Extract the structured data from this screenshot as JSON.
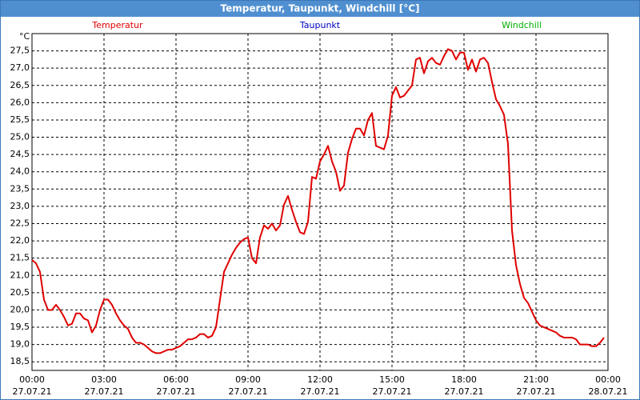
{
  "window_title": "Temperatur, Taupunkt, Windchill [°C]",
  "chart_data": {
    "type": "line",
    "y_unit": "°C",
    "x": [
      0,
      10,
      20,
      30,
      40,
      50,
      60,
      70,
      80,
      90,
      100,
      110,
      120,
      130,
      140,
      150,
      160,
      170,
      180,
      190,
      200,
      210,
      220,
      230,
      240,
      250,
      260,
      270,
      280,
      290,
      300,
      310,
      320,
      330,
      340,
      350,
      360,
      370,
      380,
      390,
      400,
      410,
      420,
      430,
      440,
      450,
      460,
      470,
      480,
      490,
      500,
      510,
      520,
      530,
      540,
      550,
      560,
      570,
      580,
      590,
      600,
      610,
      620,
      630,
      640,
      650,
      660,
      670,
      680,
      690,
      700,
      710,
      720,
      730,
      740,
      750,
      760,
      770,
      780,
      790,
      800,
      810,
      820,
      830,
      840,
      850,
      860,
      870,
      880,
      890,
      900,
      910,
      920,
      930,
      940,
      950,
      960,
      970,
      980,
      990,
      1000,
      1010,
      1020,
      1030,
      1040,
      1050,
      1060,
      1070,
      1080,
      1090,
      1100,
      1110,
      1120,
      1130,
      1140,
      1150,
      1160,
      1170,
      1180,
      1190,
      1200,
      1210,
      1220,
      1230,
      1240,
      1250,
      1260,
      1270,
      1280,
      1290,
      1300,
      1310,
      1320,
      1330,
      1340,
      1350,
      1360,
      1370,
      1380,
      1390,
      1400,
      1410,
      1420,
      1430
    ],
    "series": [
      {
        "name": "Temperatur",
        "color": "#e00000",
        "values": [
          21.45,
          21.35,
          21.1,
          20.3,
          20.0,
          20.0,
          20.15,
          20.0,
          19.8,
          19.55,
          19.6,
          19.9,
          19.9,
          19.75,
          19.7,
          19.35,
          19.55,
          20.0,
          20.3,
          20.3,
          20.15,
          19.9,
          19.7,
          19.55,
          19.45,
          19.2,
          19.05,
          19.05,
          19.0,
          18.9,
          18.8,
          18.75,
          18.75,
          18.8,
          18.85,
          18.85,
          18.9,
          18.95,
          19.05,
          19.15,
          19.15,
          19.2,
          19.3,
          19.3,
          19.2,
          19.25,
          19.5,
          20.3,
          21.1,
          21.35,
          21.6,
          21.8,
          21.95,
          22.05,
          22.1,
          21.5,
          21.35,
          22.1,
          22.45,
          22.35,
          22.5,
          22.3,
          22.45,
          23.05,
          23.3,
          22.9,
          22.55,
          22.25,
          22.2,
          22.55,
          23.85,
          23.8,
          24.3,
          24.5,
          24.75,
          24.3,
          24.0,
          23.45,
          23.6,
          24.55,
          24.95,
          25.25,
          25.25,
          25.05,
          25.5,
          25.7,
          24.75,
          24.7,
          24.65,
          25.05,
          26.2,
          26.45,
          26.15,
          26.2,
          26.35,
          26.5,
          27.25,
          27.3,
          26.85,
          27.2,
          27.3,
          27.15,
          27.1,
          27.35,
          27.55,
          27.5,
          27.25,
          27.45,
          27.45,
          26.95,
          27.25,
          26.9,
          27.25,
          27.3,
          27.15,
          26.6,
          26.1,
          25.9,
          25.65,
          24.8,
          22.3,
          21.3,
          20.75,
          20.35,
          20.2,
          19.95,
          19.7,
          19.55,
          19.5,
          19.45,
          19.4,
          19.35,
          19.25,
          19.2,
          19.2,
          19.2,
          19.15,
          19.0,
          19.0,
          19.0,
          18.95,
          18.95,
          19.05,
          19.2
        ]
      },
      {
        "name": "Taupunkt",
        "color": "#0000c0",
        "values": [
          null,
          null,
          null,
          null,
          null,
          null,
          null,
          null,
          null,
          null,
          null,
          null,
          null,
          null,
          null,
          null,
          null,
          null,
          null,
          null,
          null,
          null,
          null,
          null,
          null,
          null,
          null,
          null,
          null,
          null,
          null,
          null,
          null,
          null,
          null,
          null,
          null,
          null,
          null,
          null,
          null,
          null,
          null,
          null,
          null,
          null,
          null,
          null,
          null,
          null,
          null,
          null,
          null,
          null,
          null,
          null,
          null,
          null,
          null,
          null,
          null,
          null,
          null,
          null,
          null,
          null,
          null,
          null,
          null,
          null,
          null,
          null,
          null,
          null,
          null,
          null,
          null,
          null,
          null,
          null,
          null,
          null,
          null,
          null,
          null,
          null,
          null,
          null,
          null,
          null,
          null,
          null,
          null,
          null,
          null,
          null,
          null,
          null,
          null,
          null,
          null,
          null,
          null,
          null,
          null,
          null,
          null,
          null,
          null,
          null,
          null,
          null,
          null,
          null,
          null,
          null,
          null,
          null,
          null,
          null,
          null,
          null,
          null,
          null,
          null,
          null,
          null,
          null,
          null,
          null,
          null,
          null,
          null,
          null,
          null,
          null,
          null,
          null,
          null,
          null,
          null,
          null,
          null,
          null
        ]
      },
      {
        "name": "Windchill",
        "color": "#00b000",
        "values": [
          null,
          null,
          null,
          null,
          null,
          null,
          null,
          null,
          null,
          null,
          null,
          null,
          null,
          null,
          null,
          null,
          null,
          null,
          null,
          null,
          null,
          null,
          null,
          null,
          null,
          null,
          null,
          null,
          null,
          null,
          null,
          null,
          null,
          null,
          null,
          null,
          null,
          null,
          null,
          null,
          null,
          null,
          null,
          null,
          null,
          null,
          null,
          null,
          null,
          null,
          null,
          null,
          null,
          null,
          null,
          null,
          null,
          null,
          null,
          null,
          null,
          null,
          null,
          null,
          null,
          null,
          null,
          null,
          null,
          null,
          null,
          null,
          null,
          null,
          null,
          null,
          null,
          null,
          null,
          null,
          null,
          null,
          null,
          null,
          null,
          null,
          null,
          null,
          null,
          null,
          null,
          null,
          null,
          null,
          null,
          null,
          null,
          null,
          null,
          null,
          null,
          null,
          null,
          null,
          null,
          null,
          null,
          null,
          null,
          null,
          null,
          null,
          null,
          null,
          null,
          null,
          null,
          null,
          null,
          null,
          null,
          null,
          null,
          null,
          null,
          null,
          null,
          null,
          null,
          null,
          null,
          null,
          null,
          null,
          null,
          null,
          null,
          null,
          null,
          null,
          null,
          null,
          null,
          null
        ]
      }
    ],
    "xlim": [
      0,
      1440
    ],
    "xticks": [
      {
        "value": 0,
        "label": "00:00"
      },
      {
        "value": 180,
        "label": "03:00"
      },
      {
        "value": 360,
        "label": "06:00"
      },
      {
        "value": 540,
        "label": "09:00"
      },
      {
        "value": 720,
        "label": "12:00"
      },
      {
        "value": 900,
        "label": "15:00"
      },
      {
        "value": 1080,
        "label": "18:00"
      },
      {
        "value": 1260,
        "label": "21:00"
      },
      {
        "value": 1440,
        "label": "00:00"
      }
    ],
    "xtick_dates": [
      "27.07.21",
      "27.07.21",
      "27.07.21",
      "27.07.21",
      "27.07.21",
      "27.07.21",
      "27.07.21",
      "27.07.21",
      "28.07.21"
    ],
    "ylim": [
      18.25,
      28.0
    ],
    "yticks": [
      {
        "value": 18.5,
        "label": "18,5"
      },
      {
        "value": 19,
        "label": "19,0"
      },
      {
        "value": 19.5,
        "label": "19,5"
      },
      {
        "value": 20,
        "label": "20,0"
      },
      {
        "value": 20.5,
        "label": "20,5"
      },
      {
        "value": 21,
        "label": "21,0"
      },
      {
        "value": 21.5,
        "label": "21,5"
      },
      {
        "value": 22,
        "label": "22,0"
      },
      {
        "value": 22.5,
        "label": "22,5"
      },
      {
        "value": 23,
        "label": "23,0"
      },
      {
        "value": 23.5,
        "label": "23,5"
      },
      {
        "value": 24,
        "label": "24,0"
      },
      {
        "value": 24.5,
        "label": "24,5"
      },
      {
        "value": 25,
        "label": "25,0"
      },
      {
        "value": 25.5,
        "label": "25,5"
      },
      {
        "value": 26,
        "label": "26,0"
      },
      {
        "value": 26.5,
        "label": "26,5"
      },
      {
        "value": 27,
        "label": "27,0"
      },
      {
        "value": 27.5,
        "label": "27,5"
      }
    ],
    "grid": true
  }
}
